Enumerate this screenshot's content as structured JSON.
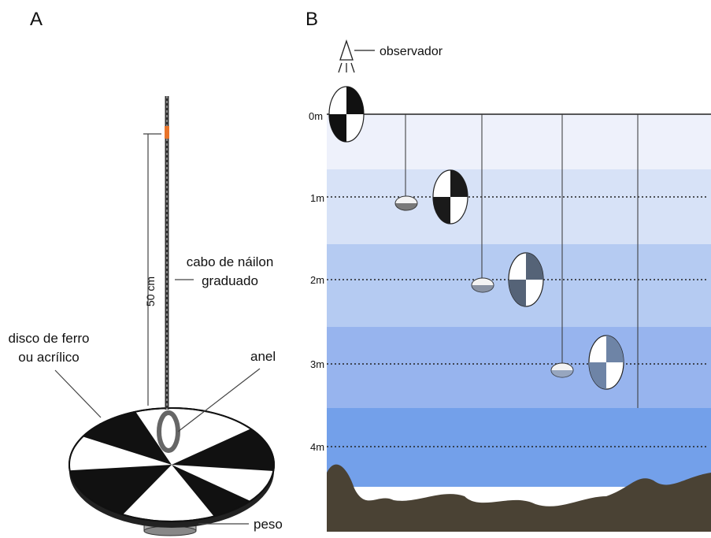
{
  "panel_a": {
    "label": "A",
    "rope_label": [
      "cabo de náilon",
      "graduado"
    ],
    "length_label": "50 cm",
    "disk_label": [
      "disco de ferro",
      "ou acrílico"
    ],
    "ring_label": "anel",
    "weight_label": "peso"
  },
  "panel_b": {
    "label": "B",
    "observer_label": "observador",
    "depth_labels": [
      "0m",
      "1m",
      "2m",
      "3m",
      "4m"
    ]
  }
}
